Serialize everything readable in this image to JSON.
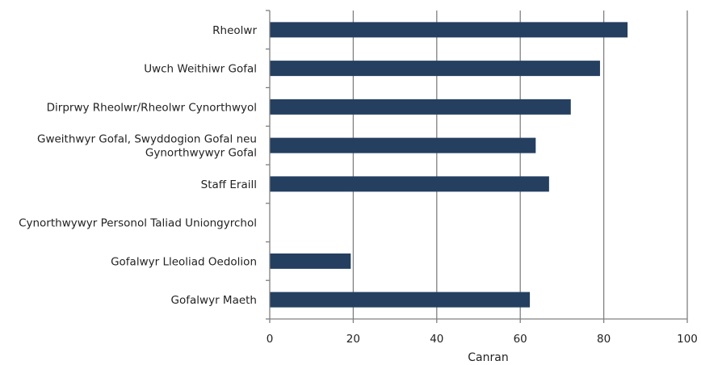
{
  "chart_data": {
    "type": "bar",
    "orientation": "horizontal",
    "categories": [
      [
        "Rheolwr"
      ],
      [
        "Uwch Weithiwr Gofal"
      ],
      [
        "Dirprwy Rheolwr/Rheolwr Cynorthwyol"
      ],
      [
        "Gweithwyr Gofal, Swyddogion Gofal neu",
        "Gynorthwywyr Gofal"
      ],
      [
        "Staff Eraill"
      ],
      [
        "Cynorthwywyr Personol Taliad Uniongyrchol"
      ],
      [
        "Gofalwyr Lleoliad Oedolion"
      ],
      [
        "Gofalwyr Maeth"
      ]
    ],
    "values": [
      85.7,
      79.1,
      72.1,
      63.7,
      66.9,
      null,
      19.4,
      62.3
    ],
    "xlabel": "Canran",
    "xlim": [
      0,
      100
    ],
    "xticks": [
      0,
      20,
      40,
      60,
      80,
      100
    ],
    "grid": "vertical",
    "legend": "none",
    "colors": {
      "bar": "#243f60",
      "grid": "#808080",
      "axis": "#808080",
      "text": "#222222"
    }
  }
}
